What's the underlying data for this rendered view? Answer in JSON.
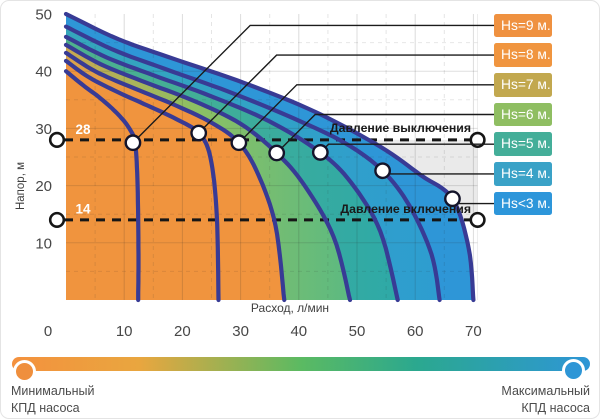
{
  "chart_data": {
    "type": "line",
    "title": "",
    "xlabel": "Расход, л/мин",
    "ylabel": "Напор, м",
    "x_ticks": [
      0,
      10,
      20,
      30,
      40,
      50,
      60,
      70
    ],
    "y_ticks": [
      10,
      20,
      30,
      40,
      50
    ],
    "xlim": [
      0,
      70.8
    ],
    "ylim": [
      0,
      50
    ],
    "grid_step": 5,
    "grid": true,
    "legend_position": "right",
    "curve_color": "#383B95",
    "working_zone_color": "#EAEAEA",
    "series": [
      {
        "name": "Hs=9 м.",
        "legend_color": "#EF9140",
        "points": [
          [
            0,
            40
          ],
          [
            3,
            37.5
          ],
          [
            6,
            35.2
          ],
          [
            9,
            32.4
          ],
          [
            11,
            29.8
          ],
          [
            11.9,
            27.2
          ],
          [
            12.3,
            20
          ],
          [
            12.45,
            8
          ],
          [
            12.4,
            0
          ]
        ],
        "marker": [
          11.5,
          27.5
        ],
        "region": {
          "type": "solid",
          "color": "#F0943E"
        }
      },
      {
        "name": "Hs=8 м.",
        "legend_color": "#F0953F",
        "points": [
          [
            0,
            41.8
          ],
          [
            4,
            38.9
          ],
          [
            9,
            36.3
          ],
          [
            14,
            34
          ],
          [
            19,
            31.6
          ],
          [
            22.8,
            29.2
          ],
          [
            24.8,
            25
          ],
          [
            25.9,
            15
          ],
          [
            26.2,
            0
          ]
        ],
        "marker": [
          22.8,
          29.2
        ],
        "region": {
          "type": "solid",
          "color": "#F0943E"
        }
      },
      {
        "name": "Hs=7 м.",
        "legend_color": "#C2A84F",
        "points": [
          [
            0,
            43.2
          ],
          [
            5,
            40
          ],
          [
            11,
            37.3
          ],
          [
            18,
            34.4
          ],
          [
            25,
            31
          ],
          [
            29.7,
            27.5
          ],
          [
            33,
            22
          ],
          [
            36,
            13
          ],
          [
            37.5,
            0
          ]
        ],
        "marker": [
          29.7,
          27.5
        ],
        "region": {
          "type": "gradient",
          "stops": [
            [
              0,
              "#D8A44C"
            ],
            [
              0.35,
              "#F0943E"
            ],
            [
              1,
              "#F0943E"
            ]
          ],
          "span": [
            0,
            37.5
          ]
        }
      },
      {
        "name": "Hs=6 м.",
        "legend_color": "#8FBE62",
        "points": [
          [
            0,
            44.6
          ],
          [
            6,
            41.2
          ],
          [
            13,
            38.3
          ],
          [
            22,
            34.8
          ],
          [
            30,
            30.8
          ],
          [
            36.2,
            25.7
          ],
          [
            41,
            20
          ],
          [
            46,
            11
          ],
          [
            48.8,
            0
          ]
        ],
        "marker": [
          36.2,
          25.7
        ],
        "region": {
          "type": "gradient",
          "stops": [
            [
              0,
              "#C9A750"
            ],
            [
              0.45,
              "#8DC063"
            ],
            [
              1,
              "#5CBA81"
            ]
          ],
          "span": [
            0,
            48.8
          ]
        }
      },
      {
        "name": "Hs=5 м.",
        "legend_color": "#44AE99",
        "points": [
          [
            0,
            46
          ],
          [
            7,
            42.4
          ],
          [
            15,
            39.3
          ],
          [
            25,
            35.6
          ],
          [
            35,
            31.2
          ],
          [
            43.7,
            25.8
          ],
          [
            49,
            20.5
          ],
          [
            54,
            12
          ],
          [
            57,
            0
          ]
        ],
        "marker": [
          43.7,
          25.8
        ],
        "region": {
          "type": "gradient",
          "stops": [
            [
              0,
              "#4FB18D"
            ],
            [
              1,
              "#2EA9A7"
            ]
          ],
          "span": [
            0,
            57
          ]
        }
      },
      {
        "name": "Hs=4 м.",
        "legend_color": "#3AA2C7",
        "points": [
          [
            0,
            47.8
          ],
          [
            8,
            43.8
          ],
          [
            17,
            40.4
          ],
          [
            28,
            36.4
          ],
          [
            39,
            31.8
          ],
          [
            48,
            27.4
          ],
          [
            54.4,
            22.6
          ],
          [
            59,
            16.5
          ],
          [
            62.8,
            8
          ],
          [
            64.2,
            0
          ]
        ],
        "marker": [
          54.4,
          22.6
        ],
        "region": {
          "type": "gradient",
          "stops": [
            [
              0,
              "#35A6BB"
            ],
            [
              1,
              "#2E9DD0"
            ]
          ],
          "span": [
            0,
            64.2
          ]
        }
      },
      {
        "name": "Hs<3 м.",
        "legend_color": "#2D96DA",
        "points": [
          [
            0,
            50
          ],
          [
            9,
            45.6
          ],
          [
            19,
            42
          ],
          [
            31,
            37.8
          ],
          [
            43,
            32.8
          ],
          [
            54,
            26.8
          ],
          [
            61,
            21.8
          ],
          [
            66.4,
            17.7
          ],
          [
            69.2,
            9
          ],
          [
            70,
            0
          ]
        ],
        "marker": [
          66.4,
          17.7
        ],
        "region": {
          "type": "solid",
          "color": "#2E96D7"
        }
      }
    ],
    "annotations": {
      "cutout": {
        "label": "Давление выключения",
        "value": 28,
        "value_label": "28"
      },
      "cutin": {
        "label": "Давление включения",
        "value": 14,
        "value_label": "14"
      }
    }
  },
  "legend": {
    "items": [
      {
        "label": "Hs=9 м.",
        "color": "#EF9140"
      },
      {
        "label": "Hs=8 м.",
        "color": "#F0953F"
      },
      {
        "label": "Hs=7 м.",
        "color": "#C2A84F"
      },
      {
        "label": "Hs=6 м.",
        "color": "#8FBE62"
      },
      {
        "label": "Hs=5 м.",
        "color": "#44AE99"
      },
      {
        "label": "Hs=4 м.",
        "color": "#3AA2C7"
      },
      {
        "label": "Hs<3 м.",
        "color": "#2D96DA"
      }
    ]
  },
  "efficiency_bar": {
    "gradient": [
      "#F4913E",
      "#E9A63F",
      "#5BBA62",
      "#2BA88F",
      "#2E96D6"
    ],
    "left_dot_color": "#EF8F3D",
    "right_dot_color": "#2E96D6",
    "left_label_line1": "Минимальный",
    "left_label_line2": "КПД насоса",
    "right_label_line1": "Максимальный",
    "right_label_line2": "КПД насоса"
  }
}
